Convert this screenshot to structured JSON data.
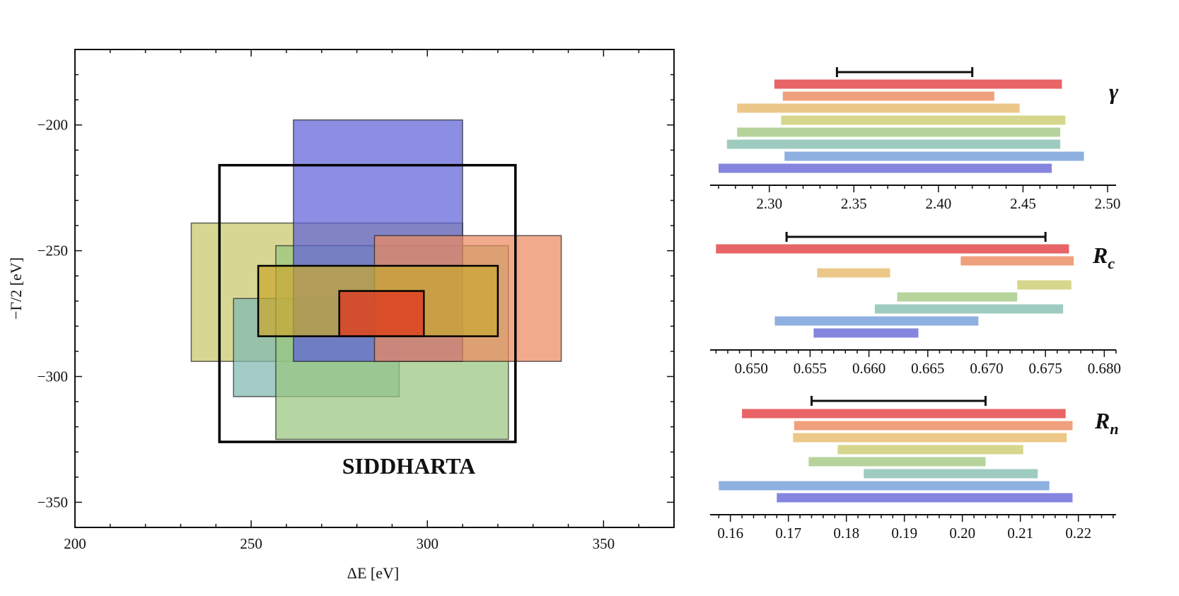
{
  "chart_data": [
    {
      "type": "rectangles",
      "xlabel": "ΔE [eV]",
      "ylabel": "−Γ/2 [eV]",
      "xlim": [
        200,
        370
      ],
      "ylim": [
        -360,
        -170
      ],
      "xticks": [
        200,
        250,
        300,
        350
      ],
      "xtick_labels": [
        "200",
        "250",
        "300",
        "350"
      ],
      "yticks": [
        -200,
        -250,
        -300,
        -350
      ],
      "ytick_labels": [
        "−200",
        "−250",
        "−300",
        "−350"
      ],
      "annotation": "SIDDHARTA",
      "grid": false,
      "boxes": [
        {
          "x": [
            233,
            310
          ],
          "y": [
            -294,
            -239
          ],
          "color": "#c9c66a"
        },
        {
          "x": [
            245,
            292
          ],
          "y": [
            -308,
            -269
          ],
          "color": "#7fb9b2"
        },
        {
          "x": [
            257,
            323
          ],
          "y": [
            -325,
            -248
          ],
          "color": "#98c67e"
        },
        {
          "x": [
            262,
            310
          ],
          "y": [
            -294,
            -198
          ],
          "color": "#5f62d8"
        },
        {
          "x": [
            285,
            338
          ],
          "y": [
            -294,
            -244
          ],
          "color": "#eb8a5f"
        },
        {
          "x": [
            252,
            320
          ],
          "y": [
            -284,
            -256
          ],
          "color": "#c9a830"
        },
        {
          "x": [
            275,
            299
          ],
          "y": [
            -284,
            -266
          ],
          "color": "#e0301e"
        }
      ],
      "outline_boxes": [
        {
          "x": [
            241,
            325
          ],
          "y": [
            -326,
            -216
          ]
        },
        {
          "x": [
            252,
            320
          ],
          "y": [
            -284,
            -256
          ]
        },
        {
          "x": [
            275,
            299
          ],
          "y": [
            -284,
            -266
          ]
        }
      ]
    },
    {
      "type": "range-bars",
      "label": "γ",
      "xlim": [
        2.265,
        2.505
      ],
      "ticks": [
        2.3,
        2.35,
        2.4,
        2.45,
        2.5
      ],
      "tick_labels": [
        "2.30",
        "2.35",
        "2.40",
        "2.45",
        "2.50"
      ],
      "reference": [
        2.34,
        2.42
      ],
      "bars": [
        {
          "range": [
            2.303,
            2.473
          ],
          "color": "#e86466"
        },
        {
          "range": [
            2.308,
            2.433
          ],
          "color": "#efa07c"
        },
        {
          "range": [
            2.281,
            2.448
          ],
          "color": "#ecc888"
        },
        {
          "range": [
            2.307,
            2.475
          ],
          "color": "#d6d68c"
        },
        {
          "range": [
            2.281,
            2.472
          ],
          "color": "#b6d39c"
        },
        {
          "range": [
            2.275,
            2.472
          ],
          "color": "#9ecbc0"
        },
        {
          "range": [
            2.309,
            2.486
          ],
          "color": "#8db0e0"
        },
        {
          "range": [
            2.27,
            2.467
          ],
          "color": "#8585e0"
        }
      ]
    },
    {
      "type": "range-bars",
      "label": "R",
      "label_sub": "c",
      "xlim": [
        0.6465,
        0.681
      ],
      "ticks": [
        0.65,
        0.655,
        0.66,
        0.665,
        0.67,
        0.675,
        0.68
      ],
      "tick_labels": [
        "0.650",
        "0.655",
        "0.660",
        "0.665",
        "0.670",
        "0.675",
        "0.680"
      ],
      "reference": [
        0.653,
        0.675
      ],
      "bars": [
        {
          "range": [
            0.647,
            0.677
          ],
          "color": "#e86466"
        },
        {
          "range": [
            0.6678,
            0.6774
          ],
          "color": "#efa07c"
        },
        {
          "range": [
            0.6556,
            0.6618
          ],
          "color": "#ecc888"
        },
        {
          "range": [
            0.6726,
            0.6772
          ],
          "color": "#d6d68c"
        },
        {
          "range": [
            0.6624,
            0.6726
          ],
          "color": "#b6d39c"
        },
        {
          "range": [
            0.6605,
            0.6765
          ],
          "color": "#9ecbc0"
        },
        {
          "range": [
            0.652,
            0.6693
          ],
          "color": "#8db0e0"
        },
        {
          "range": [
            0.6553,
            0.6642
          ],
          "color": "#8585e0"
        }
      ]
    },
    {
      "type": "range-bars",
      "label": "R",
      "label_sub": "n",
      "xlim": [
        0.1565,
        0.2265
      ],
      "ticks": [
        0.16,
        0.17,
        0.18,
        0.19,
        0.2,
        0.21,
        0.22
      ],
      "tick_labels": [
        "0.16",
        "0.17",
        "0.18",
        "0.19",
        "0.20",
        "0.21",
        "0.22"
      ],
      "reference": [
        0.174,
        0.204
      ],
      "bars": [
        {
          "range": [
            0.162,
            0.2178
          ],
          "color": "#e86466"
        },
        {
          "range": [
            0.171,
            0.219
          ],
          "color": "#efa07c"
        },
        {
          "range": [
            0.1708,
            0.218
          ],
          "color": "#ecc888"
        },
        {
          "range": [
            0.1785,
            0.2105
          ],
          "color": "#d6d68c"
        },
        {
          "range": [
            0.1735,
            0.204
          ],
          "color": "#b6d39c"
        },
        {
          "range": [
            0.183,
            0.213
          ],
          "color": "#9ecbc0"
        },
        {
          "range": [
            0.158,
            0.215
          ],
          "color": "#8db0e0"
        },
        {
          "range": [
            0.168,
            0.219
          ],
          "color": "#8585e0"
        }
      ]
    }
  ]
}
